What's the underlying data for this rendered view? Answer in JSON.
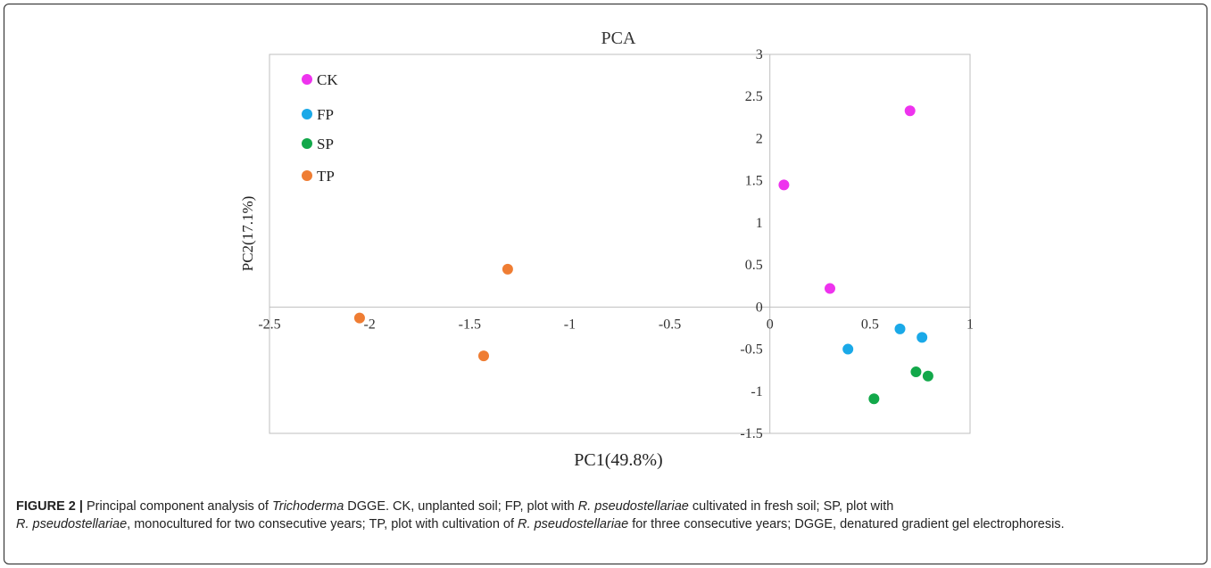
{
  "chart_data": {
    "type": "scatter",
    "title": "PCA",
    "xlabel": "PC1(49.8%)",
    "ylabel": "PC2(17.1%)",
    "xlim": [
      -2.5,
      1
    ],
    "ylim": [
      -1.5,
      3
    ],
    "xticks": [
      -2.5,
      -2,
      -1.5,
      -1,
      -0.5,
      0,
      0.5,
      1
    ],
    "xtick_labels": [
      "-2.5",
      "-2",
      "-1.5",
      "-1",
      "-0.5",
      "0",
      "0.5",
      "1"
    ],
    "yticks": [
      3,
      2.5,
      2,
      1.5,
      1,
      0.5,
      0,
      -0.5,
      -1,
      -1.5
    ],
    "ytick_labels": [
      "3",
      "2.5",
      "2",
      "1.5",
      "1",
      "0.5",
      "0",
      "-0.5",
      "-1",
      "-1.5"
    ],
    "grid": false,
    "legend": "top-left",
    "series": [
      {
        "name": "CK",
        "color": "#ee33ee",
        "points": [
          [
            0.07,
            1.45
          ],
          [
            0.3,
            0.22
          ],
          [
            0.7,
            2.33
          ]
        ]
      },
      {
        "name": "FP",
        "color": "#1aa9e8",
        "points": [
          [
            0.39,
            -0.5
          ],
          [
            0.65,
            -0.26
          ],
          [
            0.76,
            -0.36
          ]
        ]
      },
      {
        "name": "SP",
        "color": "#12a84a",
        "points": [
          [
            0.52,
            -1.09
          ],
          [
            0.73,
            -0.77
          ],
          [
            0.79,
            -0.82
          ]
        ]
      },
      {
        "name": "TP",
        "color": "#ef7d33",
        "points": [
          [
            -1.31,
            0.45
          ],
          [
            -2.05,
            -0.13
          ],
          [
            -1.43,
            -0.58
          ]
        ]
      }
    ]
  },
  "caption": {
    "label": "FIGURE 2 |",
    "p1": " Principal component analysis of ",
    "genus": "Trichoderma",
    "p2": " DGGE. CK, unplanted soil; FP, plot with ",
    "sp1": "R. pseudostellariae",
    "p3": " cultivated in fresh soil; SP, plot with ",
    "sp2": "R. pseudostellariae",
    "p4": ", monocultured for two consecutive years; TP, plot with cultivation of ",
    "sp3": "R. pseudostellariae",
    "p5": " for three consecutive years; DGGE, denatured gradient gel electrophoresis."
  }
}
